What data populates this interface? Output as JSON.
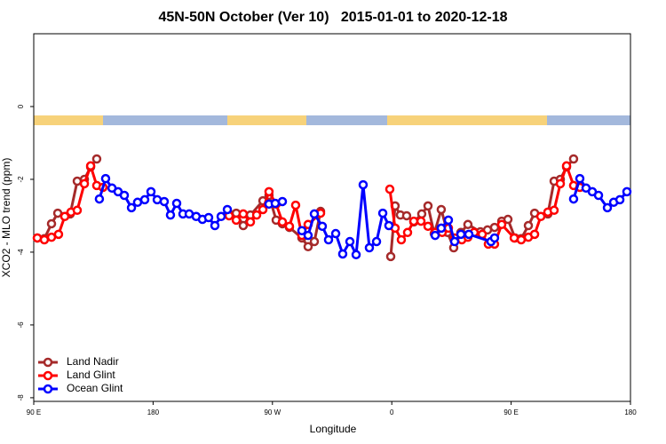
{
  "chart_data": {
    "type": "line",
    "title": "45N-50N October (Ver 10)   2015-01-01 to 2020-12-18",
    "x_label": "Longitude",
    "y_label": "XCO2 - MLO trend (ppm)",
    "xlim": [
      90,
      540
    ],
    "ylim": [
      -8.1,
      2
    ],
    "xticks": [
      {
        "value": 90,
        "label": "90 E"
      },
      {
        "value": 180,
        "label": "180"
      },
      {
        "value": 270,
        "label": "90 W"
      },
      {
        "value": 360,
        "label": "0"
      },
      {
        "value": 450,
        "label": "90 E"
      },
      {
        "value": 540,
        "label": "180"
      }
    ],
    "yticks": [
      -8,
      -6,
      -4,
      -2,
      0
    ],
    "legend": "bottom-left",
    "series": [
      {
        "name": "Land Nadir",
        "color": "#a52a2a",
        "x": [
          92.7,
          98.0,
          103.4,
          108.1,
          117.5,
          122.8,
          128.2,
          132.9,
          137.5,
          null,
          237.3,
          242.7,
          248.0,
          253.4,
          262.8,
          267.4,
          272.8,
          277.5,
          282.8,
          292.2,
          296.9,
          301.6,
          306.3,
          null,
          359.2,
          362.5,
          366.5,
          371.2,
          376.6,
          382.6,
          387.3,
          392.0,
          397.3,
          402.0,
          406.7,
          412.1,
          417.4,
          426.8,
          432.2,
          437.5,
          442.9,
          447.6,
          452.9,
          457.6,
          463.0,
          467.7,
          477.7,
          482.4,
          487.1,
          491.8,
          497.1
        ],
        "values": [
          -3.61,
          -3.63,
          -3.22,
          -2.93,
          -2.95,
          -2.05,
          -2.0,
          -1.66,
          -1.44,
          null,
          -2.95,
          -2.93,
          -3.27,
          -2.98,
          -2.59,
          -2.44,
          -3.12,
          -3.22,
          -3.32,
          -3.61,
          -3.85,
          -3.71,
          -2.88,
          null,
          -4.12,
          -2.73,
          -2.98,
          -3.0,
          -3.17,
          -2.95,
          -2.73,
          -3.49,
          -2.83,
          -3.46,
          -3.88,
          -3.46,
          -3.24,
          -3.44,
          -3.39,
          -3.32,
          -3.15,
          -3.1,
          -3.61,
          -3.63,
          -3.27,
          -2.93,
          -2.95,
          -2.05,
          -2.0,
          -1.66,
          -1.44
        ]
      },
      {
        "name": "Land Glint",
        "color": "#ff0000",
        "x": [
          92.7,
          98.0,
          103.4,
          108.7,
          113.4,
          118.1,
          122.8,
          128.2,
          132.9,
          137.5,
          142.2,
          null,
          237.3,
          242.7,
          248.0,
          253.4,
          258.1,
          262.8,
          267.4,
          272.8,
          277.5,
          282.8,
          287.5,
          292.2,
          296.9,
          306.3,
          null,
          358.5,
          362.5,
          367.2,
          371.9,
          376.6,
          382.0,
          387.3,
          392.7,
          398.0,
          402.7,
          407.4,
          412.8,
          417.4,
          422.1,
          428.2,
          432.8,
          437.5,
          442.9,
          452.3,
          457.6,
          463.0,
          467.7,
          472.4,
          477.7,
          482.4,
          487.1,
          491.8,
          497.1,
          501.8
        ],
        "values": [
          -3.61,
          -3.66,
          -3.59,
          -3.51,
          -3.02,
          -2.9,
          -2.85,
          -2.12,
          -1.63,
          -2.17,
          -2.22,
          null,
          -3.0,
          -3.12,
          -2.95,
          -3.17,
          -2.98,
          -2.83,
          -2.34,
          -2.68,
          -3.17,
          -3.29,
          -2.71,
          -3.54,
          -3.24,
          -2.93,
          null,
          -2.27,
          -3.34,
          -3.66,
          -3.46,
          -3.15,
          -3.15,
          -3.29,
          -3.46,
          -3.46,
          -3.34,
          -3.61,
          -3.66,
          -3.59,
          -3.46,
          -3.51,
          -3.78,
          -3.78,
          -3.24,
          -3.61,
          -3.66,
          -3.59,
          -3.51,
          -3.02,
          -2.9,
          -2.85,
          -2.12,
          -1.63,
          -2.17,
          -2.22
        ]
      },
      {
        "name": "Ocean Glint",
        "color": "#0000ff",
        "x": [
          139.5,
          144.2,
          149.0,
          153.6,
          158.3,
          163.7,
          168.3,
          173.7,
          178.4,
          183.1,
          188.4,
          193.1,
          197.8,
          202.5,
          207.2,
          212.5,
          217.2,
          221.9,
          226.6,
          231.3,
          236.0,
          null,
          267.4,
          272.1,
          277.5,
          null,
          292.2,
          296.9,
          301.6,
          307.6,
          312.3,
          317.7,
          323.0,
          328.4,
          333.1,
          338.4,
          343.1,
          348.5,
          353.2,
          357.8,
          null,
          392.7,
          397.3,
          402.7,
          407.4,
          412.1,
          418.1,
          434.8,
          437.5,
          null,
          497.1,
          501.8,
          506.5,
          511.2,
          515.9,
          522.6,
          527.3,
          532.0,
          537.3
        ],
        "values": [
          -2.54,
          -1.98,
          -2.24,
          -2.34,
          -2.44,
          -2.78,
          -2.63,
          -2.56,
          -2.34,
          -2.56,
          -2.61,
          -2.98,
          -2.66,
          -2.95,
          -2.95,
          -3.02,
          -3.1,
          -3.05,
          -3.27,
          -3.02,
          -2.83,
          null,
          -2.68,
          -2.66,
          -2.61,
          null,
          -3.41,
          -3.54,
          -2.95,
          -3.29,
          -3.66,
          -3.49,
          -4.05,
          -3.71,
          -4.07,
          -2.15,
          -3.88,
          -3.71,
          -2.93,
          -3.27,
          null,
          -3.54,
          -3.34,
          -3.12,
          -3.71,
          -3.51,
          -3.51,
          -3.71,
          -3.61,
          null,
          -2.54,
          -1.98,
          -2.24,
          -2.34,
          -2.44,
          -2.78,
          -2.63,
          -2.56,
          -2.34
        ]
      }
    ]
  }
}
